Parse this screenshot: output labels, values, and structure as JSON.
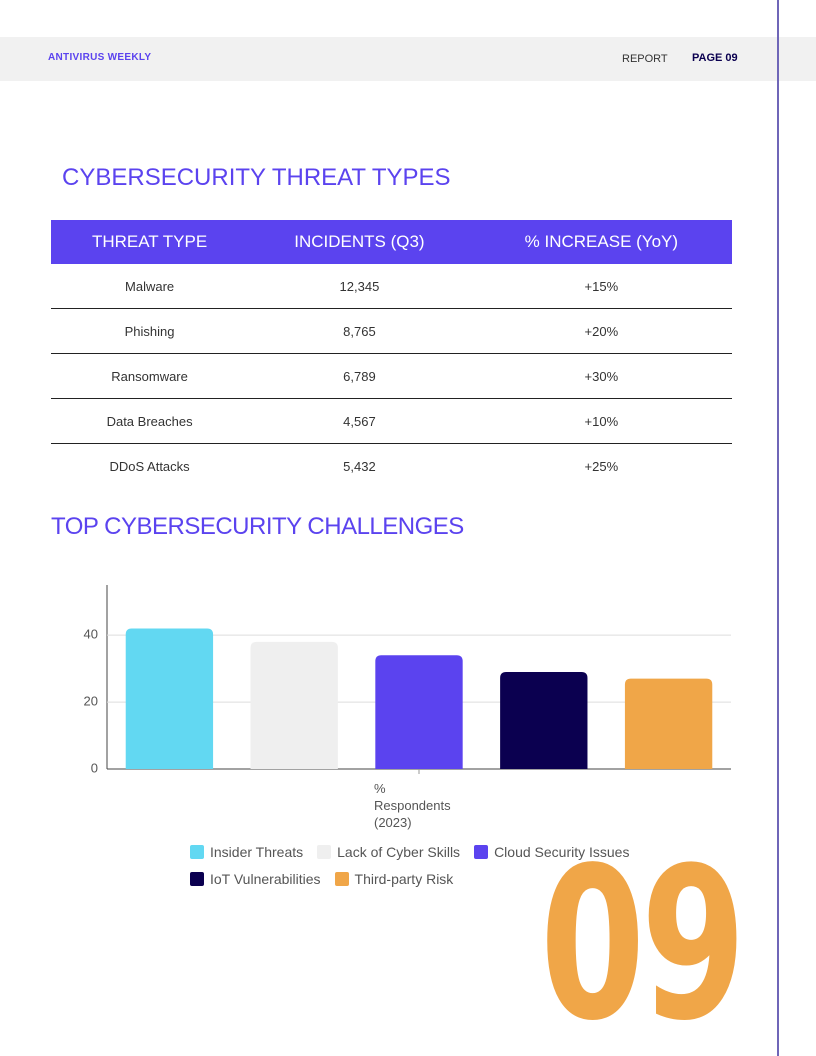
{
  "header": {
    "brand": "ANTIVIRUS WEEKLY",
    "section": "REPORT",
    "page": "PAGE 09"
  },
  "table": {
    "title": "CYBERSECURITY THREAT TYPES",
    "columns": [
      "THREAT TYPE",
      "INCIDENTS (Q3)",
      "% INCREASE (YoY)"
    ],
    "rows": [
      [
        "Malware",
        "12,345",
        "+15%"
      ],
      [
        "Phishing",
        "8,765",
        "+20%"
      ],
      [
        "Ransomware",
        "6,789",
        "+30%"
      ],
      [
        "Data Breaches",
        "4,567",
        "+10%"
      ],
      [
        "DDoS Attacks",
        "5,432",
        "+25%"
      ]
    ]
  },
  "chart_data": {
    "type": "bar",
    "title": "TOP CYBERSECURITY CHALLENGES",
    "categories": [
      "% Respondents (2023)"
    ],
    "series": [
      {
        "name": "Insider Threats",
        "color": "#62d8f2",
        "values": [
          42
        ]
      },
      {
        "name": "Lack of Cyber Skills",
        "color": "#efefef",
        "values": [
          38
        ]
      },
      {
        "name": "Cloud Security Issues",
        "color": "#5b43ef",
        "values": [
          34
        ]
      },
      {
        "name": "IoT Vulnerabilities",
        "color": "#0b0050",
        "values": [
          29
        ]
      },
      {
        "name": "Third-party Risk",
        "color": "#f0a648",
        "values": [
          27
        ]
      }
    ],
    "ylim": [
      0,
      55
    ],
    "yticks": [
      0,
      20,
      40
    ],
    "grid": true
  },
  "page_number": "09"
}
